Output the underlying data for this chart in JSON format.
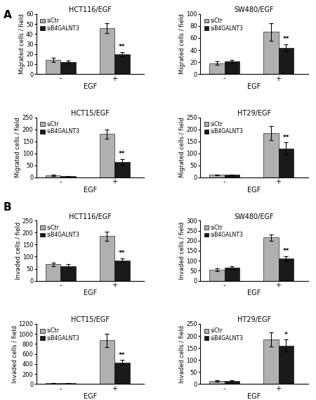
{
  "section_A": {
    "plots": [
      {
        "title": "HCT116/EGF",
        "ylabel": "Migrated cells / field",
        "ylim": [
          0,
          60
        ],
        "yticks": [
          0,
          10,
          20,
          30,
          40,
          50,
          60
        ],
        "siCtr": [
          14,
          46
        ],
        "siB4": [
          12,
          20
        ],
        "siCtr_err": [
          2,
          5
        ],
        "siB4_err": [
          1.5,
          2
        ],
        "sig": [
          "",
          "**"
        ]
      },
      {
        "title": "SW480/EGF",
        "ylabel": "Migrated cells / field",
        "ylim": [
          0,
          100
        ],
        "yticks": [
          0,
          20,
          40,
          60,
          80,
          100
        ],
        "siCtr": [
          18,
          70
        ],
        "siB4": [
          21,
          44
        ],
        "siCtr_err": [
          3,
          15
        ],
        "siB4_err": [
          3,
          6
        ],
        "sig": [
          "",
          "**"
        ]
      },
      {
        "title": "HCT15/EGF",
        "ylabel": "Migrated cells / field",
        "ylim": [
          0,
          250
        ],
        "yticks": [
          0,
          50,
          100,
          150,
          200,
          250
        ],
        "siCtr": [
          8,
          180
        ],
        "siB4": [
          5,
          65
        ],
        "siCtr_err": [
          2,
          20
        ],
        "siB4_err": [
          1,
          12
        ],
        "sig": [
          "",
          "**"
        ]
      },
      {
        "title": "HT29/EGF",
        "ylabel": "Migrated cells / field",
        "ylim": [
          0,
          250
        ],
        "yticks": [
          0,
          50,
          100,
          150,
          200,
          250
        ],
        "siCtr": [
          10,
          185
        ],
        "siB4": [
          10,
          120
        ],
        "siCtr_err": [
          2,
          30
        ],
        "siB4_err": [
          2,
          25
        ],
        "sig": [
          "",
          "**"
        ]
      }
    ]
  },
  "section_B": {
    "plots": [
      {
        "title": "HCT116/EGF",
        "ylabel": "Invaded cells / field",
        "ylim": [
          0,
          250
        ],
        "yticks": [
          0,
          50,
          100,
          150,
          200,
          250
        ],
        "siCtr": [
          68,
          185
        ],
        "siB4": [
          60,
          85
        ],
        "siCtr_err": [
          8,
          18
        ],
        "siB4_err": [
          8,
          8
        ],
        "sig": [
          "",
          "**"
        ]
      },
      {
        "title": "SW480/EGF",
        "ylabel": "Invaded cells / field",
        "ylim": [
          0,
          300
        ],
        "yticks": [
          0,
          50,
          100,
          150,
          200,
          250,
          300
        ],
        "siCtr": [
          55,
          215
        ],
        "siB4": [
          65,
          110
        ],
        "siCtr_err": [
          8,
          15
        ],
        "siB4_err": [
          8,
          12
        ],
        "sig": [
          "",
          "**"
        ]
      },
      {
        "title": "HCT15/EGF",
        "ylabel": "Invaded cells / field",
        "ylim": [
          0,
          1200
        ],
        "yticks": [
          0,
          200,
          400,
          600,
          800,
          1000,
          1200
        ],
        "siCtr": [
          20,
          870
        ],
        "siB4": [
          15,
          430
        ],
        "siCtr_err": [
          5,
          130
        ],
        "siB4_err": [
          4,
          50
        ],
        "sig": [
          "",
          "**"
        ]
      },
      {
        "title": "HT29/EGF",
        "ylabel": "Invaded cells / field",
        "ylim": [
          0,
          250
        ],
        "yticks": [
          0,
          50,
          100,
          150,
          200,
          250
        ],
        "siCtr": [
          12,
          185
        ],
        "siB4": [
          12,
          160
        ],
        "siCtr_err": [
          3,
          30
        ],
        "siB4_err": [
          3,
          25
        ],
        "sig": [
          "",
          "*"
        ]
      }
    ]
  },
  "colors": {
    "siCtr": "#b0b0b0",
    "siB4": "#1a1a1a"
  },
  "bar_width": 0.28,
  "group_centers": [
    0.55,
    1.55
  ]
}
